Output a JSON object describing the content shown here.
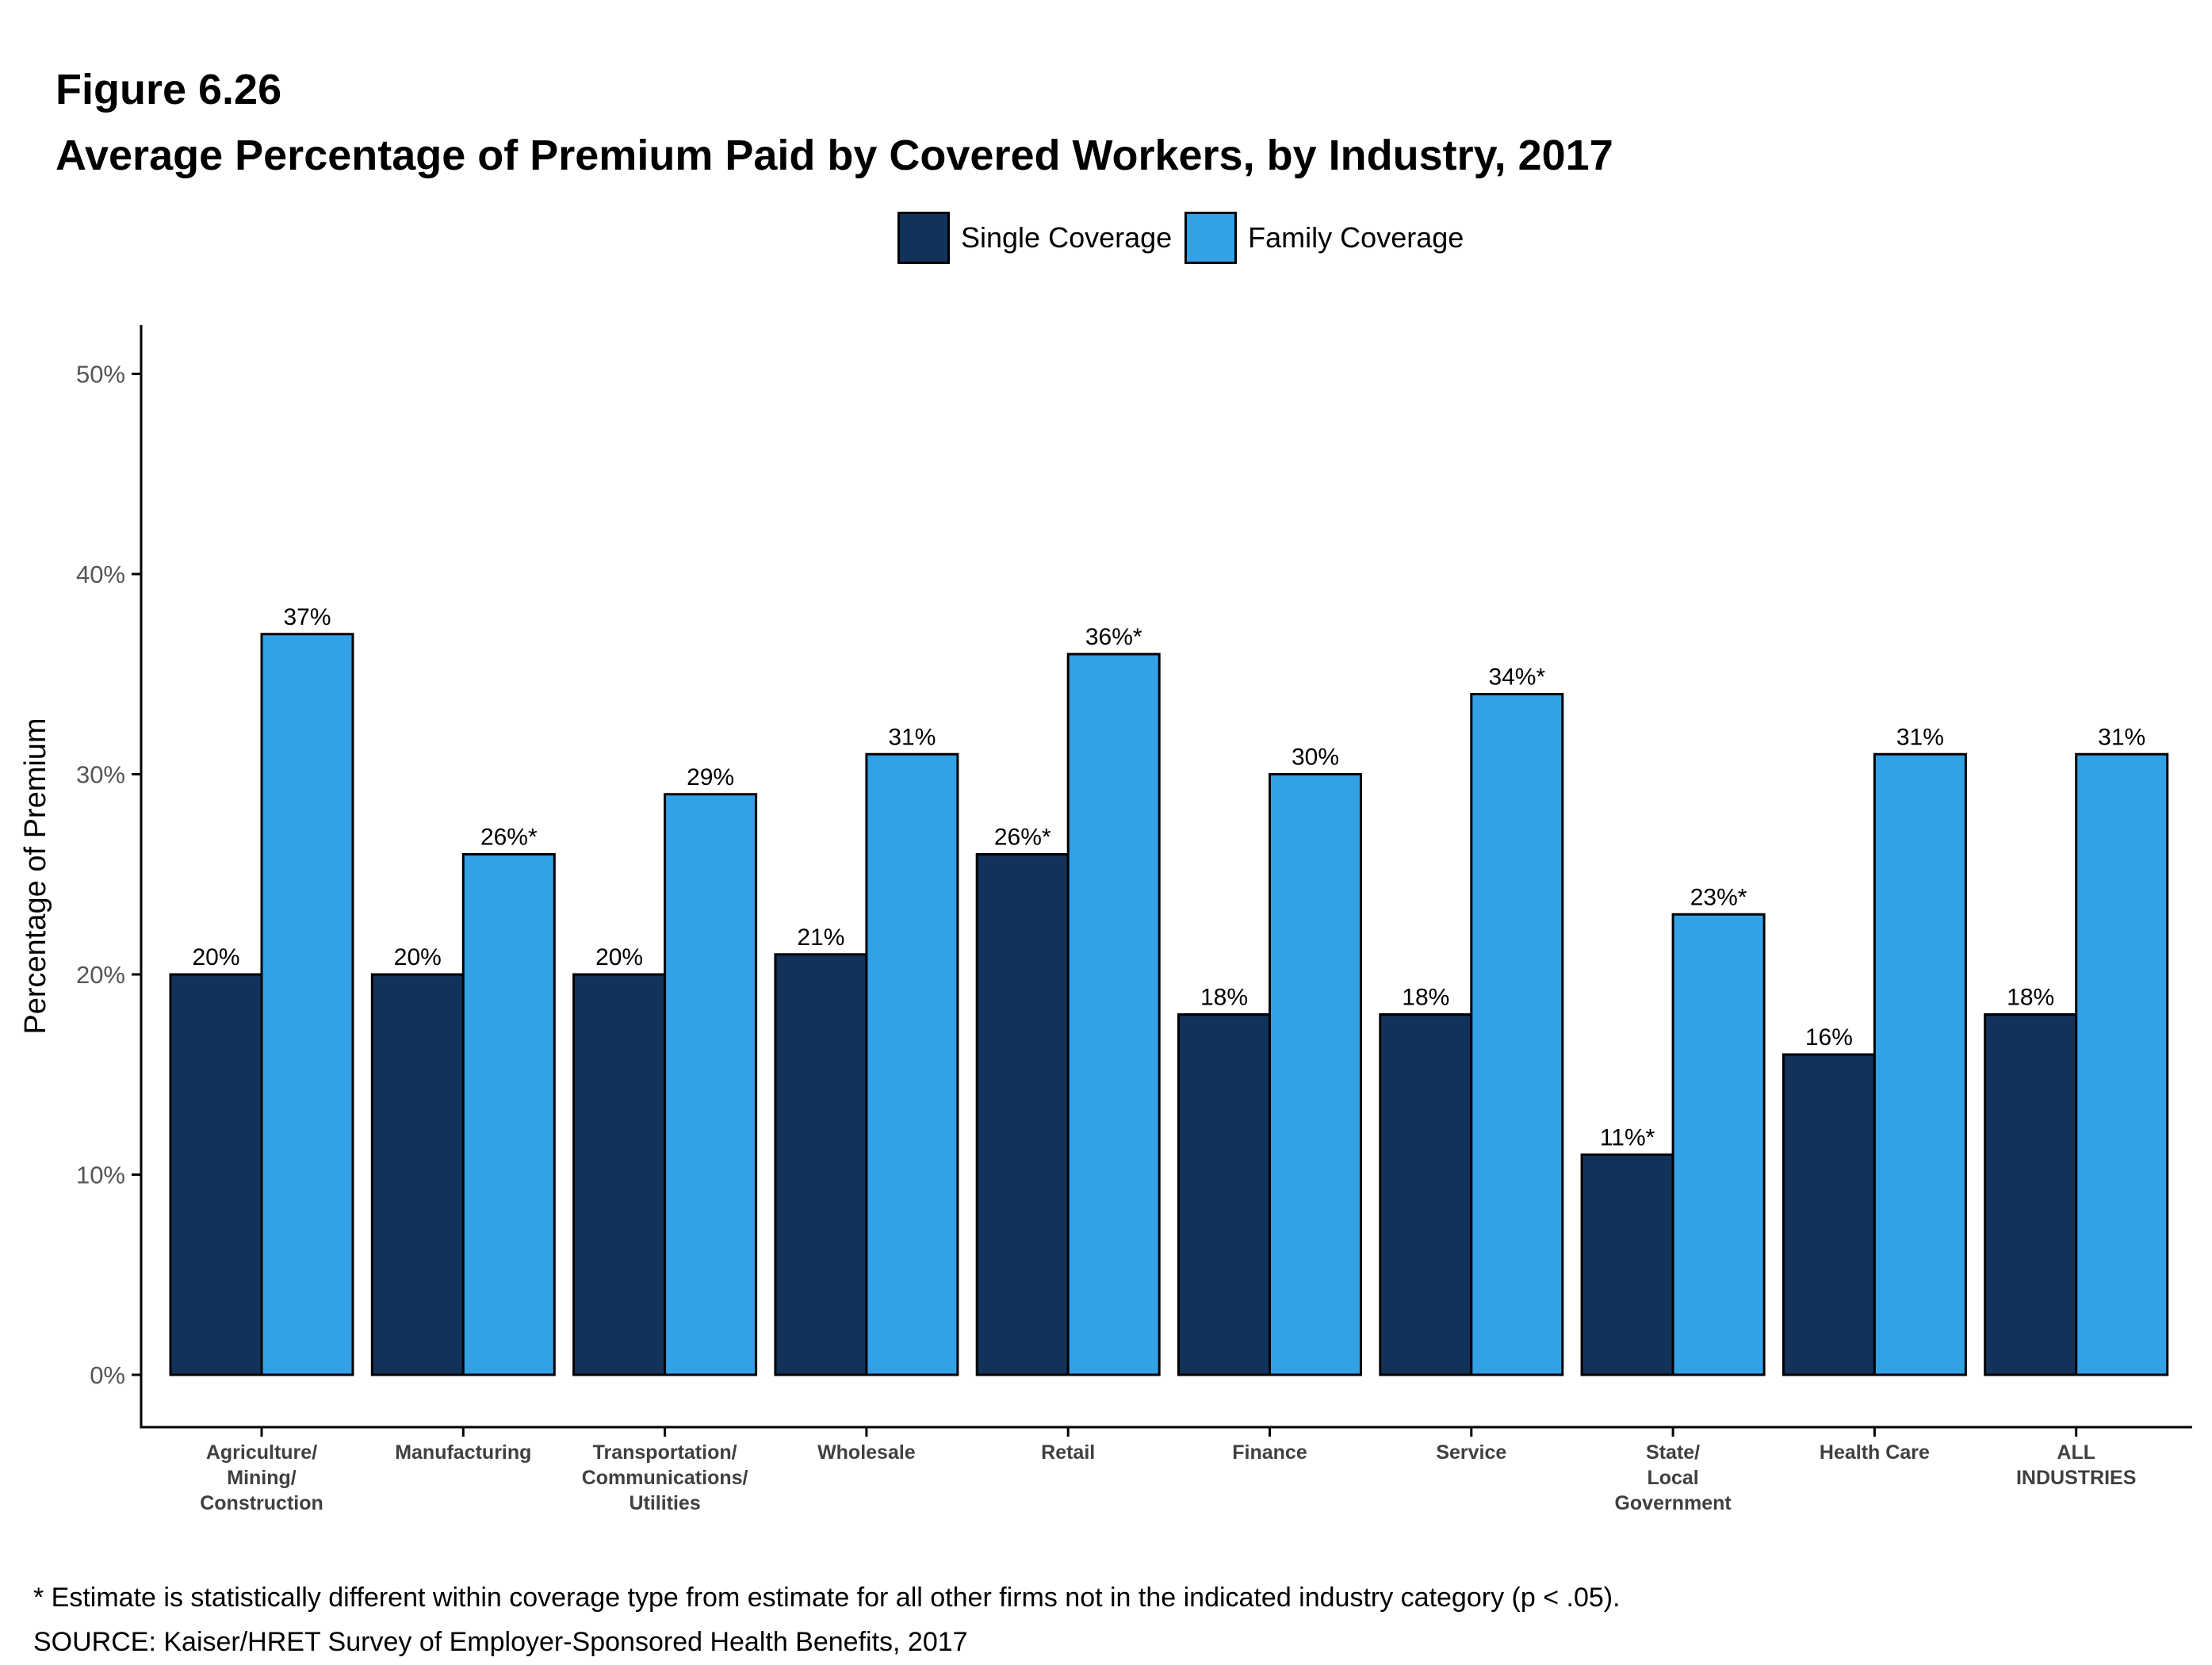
{
  "figure_number": "Figure 6.26",
  "footnote": "* Estimate is statistically different within coverage type from estimate for all other firms not in the indicated industry category (p < .05).",
  "source": "SOURCE: Kaiser/HRET Survey of Employer-Sponsored Health Benefits, 2017",
  "colors": {
    "single": "#13325a",
    "family": "#33a1e6",
    "axis": "#000000",
    "tick_text": "#555555"
  },
  "chart_data": {
    "type": "bar",
    "title": "Average Percentage of Premium Paid by Covered Workers, by Industry, 2017",
    "xlabel": "",
    "ylabel": "Percentage of Premium",
    "ylim": [
      0,
      50
    ],
    "yticks": [
      "0%",
      "10%",
      "20%",
      "30%",
      "40%",
      "50%"
    ],
    "grid": false,
    "legend_position": "top-center",
    "categories": [
      [
        "Agriculture/",
        "Mining/",
        "Construction"
      ],
      [
        "Manufacturing"
      ],
      [
        "Transportation/",
        "Communications/",
        "Utilities"
      ],
      [
        "Wholesale"
      ],
      [
        "Retail"
      ],
      [
        "Finance"
      ],
      [
        "Service"
      ],
      [
        "State/",
        "Local",
        "Government"
      ],
      [
        "Health Care"
      ],
      [
        "ALL",
        "INDUSTRIES"
      ]
    ],
    "series": [
      {
        "name": "Single Coverage",
        "values": [
          20,
          20,
          20,
          21,
          26,
          18,
          18,
          11,
          16,
          18
        ],
        "labels": [
          "20%",
          "20%",
          "20%",
          "21%",
          "26%*",
          "18%",
          "18%",
          "11%*",
          "16%",
          "18%"
        ]
      },
      {
        "name": "Family Coverage",
        "values": [
          37,
          26,
          29,
          31,
          36,
          30,
          34,
          23,
          31,
          31
        ],
        "labels": [
          "37%",
          "26%*",
          "29%",
          "31%",
          "36%*",
          "30%",
          "34%*",
          "23%*",
          "31%",
          "31%"
        ]
      }
    ]
  }
}
